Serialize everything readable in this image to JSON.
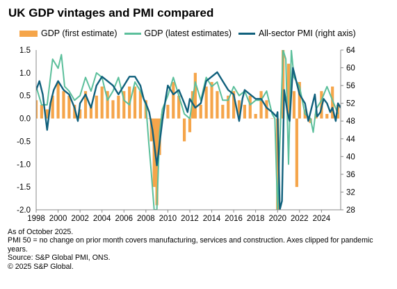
{
  "title": "UK GDP vintages and PMI compared",
  "notes": [
    "As of October 2025.",
    "PMI 50 = no change on prior month covers manufacturing, services and construction. Axes clipped for pandemic years.",
    "Source: S&P Global PMI, ONS.",
    "© 2025 S&P Global."
  ],
  "colors": {
    "gdp_first": "#f5a54a",
    "gdp_latest": "#5bbf9b",
    "pmi": "#10607c",
    "axis": "#888888"
  },
  "chart_data": {
    "type": "bar+line",
    "x_ticks": [
      "1998",
      "2000",
      "2002",
      "2004",
      "2006",
      "2008",
      "2010",
      "2012",
      "2014",
      "2016",
      "2018",
      "2020",
      "2022",
      "2024"
    ],
    "left_axis": {
      "ticks": [
        "1.5",
        "1.0",
        "0.5",
        "0.0",
        "-0.5",
        "-1.0",
        "-1.5",
        "-2.0"
      ],
      "ylim": [
        -2.0,
        1.5
      ]
    },
    "right_axis": {
      "ticks": [
        "64",
        "60",
        "56",
        "52",
        "48",
        "44",
        "40",
        "36",
        "32",
        "28"
      ],
      "ylim": [
        28,
        64
      ]
    },
    "x_range": [
      1998.0,
      2025.75
    ],
    "series": [
      {
        "name": "GDP (first estimate)",
        "type": "bar",
        "axis": "left",
        "points": [
          [
            1998.0,
            0.4
          ],
          [
            1998.5,
            0.3
          ],
          [
            1999.0,
            0.2
          ],
          [
            1999.5,
            0.5
          ],
          [
            2000.0,
            0.8
          ],
          [
            2000.5,
            0.6
          ],
          [
            2001.0,
            0.5
          ],
          [
            2001.5,
            0.3
          ],
          [
            2002.0,
            0.2
          ],
          [
            2002.5,
            0.6
          ],
          [
            2003.0,
            0.3
          ],
          [
            2003.5,
            0.5
          ],
          [
            2004.0,
            0.7
          ],
          [
            2004.5,
            0.6
          ],
          [
            2005.0,
            0.4
          ],
          [
            2005.5,
            0.5
          ],
          [
            2006.0,
            0.6
          ],
          [
            2006.5,
            0.7
          ],
          [
            2007.0,
            0.7
          ],
          [
            2007.5,
            0.6
          ],
          [
            2008.0,
            0.4
          ],
          [
            2008.25,
            0.0
          ],
          [
            2008.5,
            -0.5
          ],
          [
            2008.75,
            -1.5
          ],
          [
            2009.0,
            -1.9
          ],
          [
            2009.25,
            -0.8
          ],
          [
            2009.5,
            0.1
          ],
          [
            2010.0,
            0.3
          ],
          [
            2010.5,
            0.8
          ],
          [
            2011.0,
            0.5
          ],
          [
            2011.5,
            -0.5
          ],
          [
            2012.0,
            -0.3
          ],
          [
            2012.25,
            0.6
          ],
          [
            2012.5,
            1.0
          ],
          [
            2013.0,
            0.3
          ],
          [
            2013.5,
            0.7
          ],
          [
            2014.0,
            0.8
          ],
          [
            2014.5,
            0.6
          ],
          [
            2015.0,
            0.3
          ],
          [
            2015.5,
            0.5
          ],
          [
            2016.0,
            0.6
          ],
          [
            2016.5,
            0.4
          ],
          [
            2017.0,
            0.3
          ],
          [
            2017.5,
            0.5
          ],
          [
            2018.0,
            0.1
          ],
          [
            2018.5,
            0.6
          ],
          [
            2019.0,
            0.4
          ],
          [
            2019.5,
            0.0
          ],
          [
            2020.0,
            -2.0
          ],
          [
            2020.5,
            1.5
          ],
          [
            2021.0,
            1.2
          ],
          [
            2021.5,
            0.6
          ],
          [
            2021.75,
            -1.5
          ],
          [
            2022.0,
            0.8
          ],
          [
            2022.5,
            0.2
          ],
          [
            2023.0,
            -0.1
          ],
          [
            2023.5,
            0.1
          ],
          [
            2024.0,
            0.6
          ],
          [
            2024.5,
            0.1
          ],
          [
            2025.0,
            0.7
          ],
          [
            2025.5,
            0.3
          ]
        ]
      },
      {
        "name": "GDP (latest estimates)",
        "type": "line",
        "axis": "left",
        "points": [
          [
            1998.0,
            0.7
          ],
          [
            1998.5,
            0.3
          ],
          [
            1999.0,
            0.3
          ],
          [
            1999.5,
            1.3
          ],
          [
            2000.0,
            1.1
          ],
          [
            2000.3,
            1.4
          ],
          [
            2000.6,
            0.7
          ],
          [
            2001.0,
            0.6
          ],
          [
            2001.5,
            0.4
          ],
          [
            2002.0,
            0.5
          ],
          [
            2002.5,
            0.9
          ],
          [
            2003.0,
            0.6
          ],
          [
            2003.5,
            1.0
          ],
          [
            2004.0,
            0.9
          ],
          [
            2004.5,
            0.4
          ],
          [
            2005.0,
            0.6
          ],
          [
            2005.5,
            0.9
          ],
          [
            2006.0,
            0.4
          ],
          [
            2006.5,
            0.3
          ],
          [
            2007.0,
            0.8
          ],
          [
            2007.5,
            0.6
          ],
          [
            2008.0,
            0.3
          ],
          [
            2008.25,
            -0.5
          ],
          [
            2008.5,
            -1.2
          ],
          [
            2008.75,
            -2.0
          ],
          [
            2009.0,
            -2.0
          ],
          [
            2009.25,
            -0.3
          ],
          [
            2009.5,
            0.2
          ],
          [
            2010.0,
            0.5
          ],
          [
            2010.5,
            0.9
          ],
          [
            2011.0,
            0.5
          ],
          [
            2011.5,
            0.1
          ],
          [
            2012.0,
            0.0
          ],
          [
            2012.5,
            0.8
          ],
          [
            2013.0,
            0.4
          ],
          [
            2013.5,
            0.9
          ],
          [
            2014.0,
            0.7
          ],
          [
            2014.5,
            0.8
          ],
          [
            2015.0,
            0.4
          ],
          [
            2015.5,
            0.4
          ],
          [
            2016.0,
            0.7
          ],
          [
            2016.5,
            0.5
          ],
          [
            2017.0,
            0.6
          ],
          [
            2017.5,
            0.3
          ],
          [
            2018.0,
            0.4
          ],
          [
            2018.5,
            0.4
          ],
          [
            2019.0,
            0.6
          ],
          [
            2019.5,
            0.1
          ],
          [
            2019.75,
            0.0
          ],
          [
            2020.0,
            -2.0
          ],
          [
            2020.5,
            1.5
          ],
          [
            2020.75,
            1.3
          ],
          [
            2021.0,
            -1.0
          ],
          [
            2021.25,
            1.5
          ],
          [
            2021.5,
            0.9
          ],
          [
            2022.0,
            0.7
          ],
          [
            2022.5,
            0.1
          ],
          [
            2023.0,
            0.0
          ],
          [
            2023.25,
            -0.3
          ],
          [
            2023.5,
            0.2
          ],
          [
            2024.0,
            0.4
          ],
          [
            2024.5,
            0.7
          ],
          [
            2025.0,
            0.4
          ],
          [
            2025.5,
            0.1
          ]
        ]
      },
      {
        "name": "All-sector PMI (right axis)",
        "type": "line",
        "axis": "right",
        "points": [
          [
            1998.0,
            55
          ],
          [
            1998.3,
            57
          ],
          [
            1998.6,
            54
          ],
          [
            1998.8,
            50
          ],
          [
            1999.0,
            46
          ],
          [
            1999.3,
            52
          ],
          [
            1999.6,
            55
          ],
          [
            2000.0,
            57
          ],
          [
            2000.5,
            55
          ],
          [
            2001.0,
            54
          ],
          [
            2001.5,
            51
          ],
          [
            2001.8,
            48
          ],
          [
            2002.0,
            52
          ],
          [
            2002.5,
            54
          ],
          [
            2003.0,
            51
          ],
          [
            2003.5,
            56
          ],
          [
            2004.0,
            58
          ],
          [
            2004.5,
            57
          ],
          [
            2005.0,
            56
          ],
          [
            2005.5,
            54
          ],
          [
            2006.0,
            56
          ],
          [
            2006.5,
            58
          ],
          [
            2007.0,
            58
          ],
          [
            2007.5,
            56
          ],
          [
            2007.8,
            53
          ],
          [
            2008.0,
            52
          ],
          [
            2008.3,
            50
          ],
          [
            2008.6,
            46
          ],
          [
            2008.9,
            40
          ],
          [
            2009.0,
            38
          ],
          [
            2009.2,
            42
          ],
          [
            2009.5,
            48
          ],
          [
            2009.8,
            53
          ],
          [
            2010.0,
            56
          ],
          [
            2010.5,
            54
          ],
          [
            2011.0,
            55
          ],
          [
            2011.5,
            52
          ],
          [
            2011.8,
            50
          ],
          [
            2012.0,
            53
          ],
          [
            2012.5,
            51
          ],
          [
            2013.0,
            52
          ],
          [
            2013.5,
            57
          ],
          [
            2014.0,
            58
          ],
          [
            2014.5,
            59
          ],
          [
            2015.0,
            57
          ],
          [
            2015.5,
            55
          ],
          [
            2016.0,
            54
          ],
          [
            2016.5,
            48
          ],
          [
            2016.8,
            53
          ],
          [
            2017.0,
            55
          ],
          [
            2017.5,
            54
          ],
          [
            2018.0,
            53
          ],
          [
            2018.5,
            53
          ],
          [
            2019.0,
            51
          ],
          [
            2019.5,
            50
          ],
          [
            2019.9,
            49
          ],
          [
            2020.0,
            50
          ],
          [
            2020.2,
            28
          ],
          [
            2020.4,
            30
          ],
          [
            2020.6,
            55
          ],
          [
            2020.9,
            50
          ],
          [
            2021.1,
            48
          ],
          [
            2021.4,
            60
          ],
          [
            2021.6,
            58
          ],
          [
            2022.0,
            54
          ],
          [
            2022.5,
            52
          ],
          [
            2022.8,
            48
          ],
          [
            2023.0,
            50
          ],
          [
            2023.4,
            54
          ],
          [
            2023.6,
            49
          ],
          [
            2023.9,
            50
          ],
          [
            2024.2,
            53
          ],
          [
            2024.5,
            52
          ],
          [
            2024.8,
            50
          ],
          [
            2025.0,
            51
          ],
          [
            2025.3,
            48
          ],
          [
            2025.5,
            52
          ],
          [
            2025.75,
            51
          ]
        ]
      }
    ]
  }
}
